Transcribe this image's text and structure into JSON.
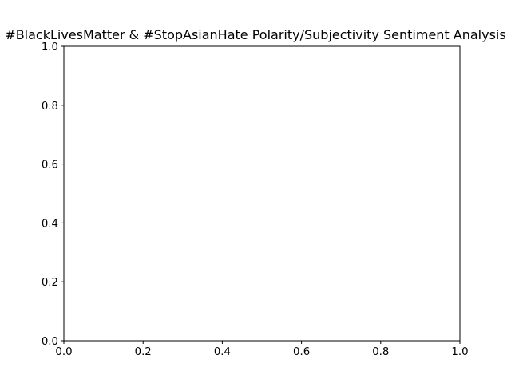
{
  "chart_data": {
    "type": "scatter",
    "title": "#BlackLivesMatter & #StopAsianHate Polarity/Subjectivity Sentiment Analysis",
    "xlabel": "",
    "ylabel": "",
    "xlim": [
      0.0,
      1.0
    ],
    "ylim": [
      0.0,
      1.0
    ],
    "xticks": [
      "0.0",
      "0.2",
      "0.4",
      "0.6",
      "0.8",
      "1.0"
    ],
    "yticks": [
      "0.0",
      "0.2",
      "0.4",
      "0.6",
      "0.8",
      "1.0"
    ],
    "grid": false,
    "series": []
  }
}
